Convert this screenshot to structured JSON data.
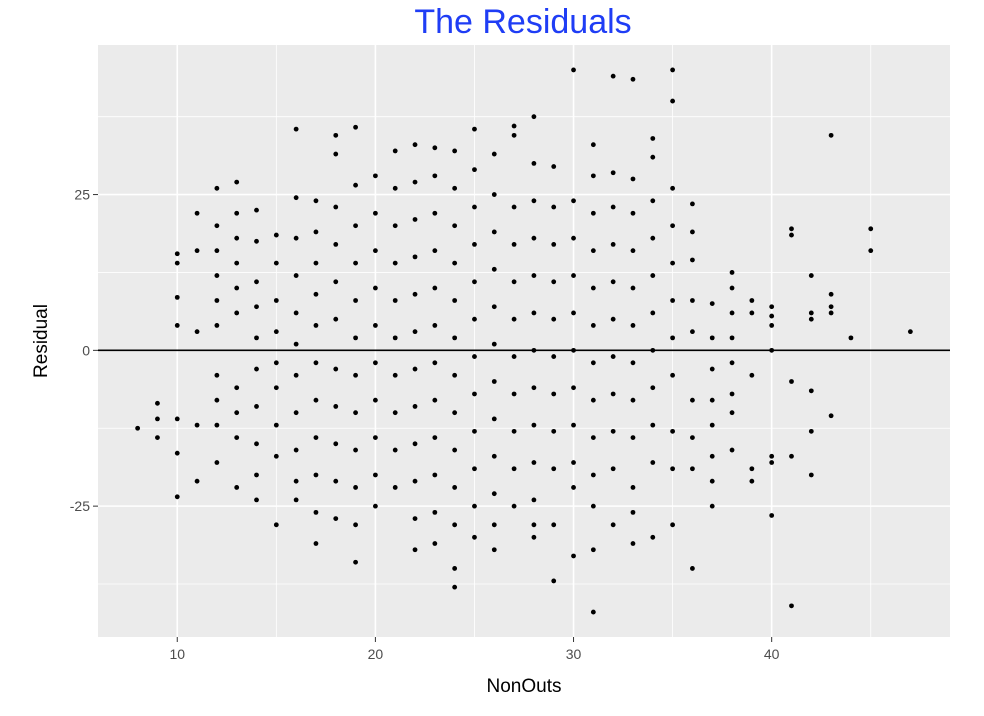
{
  "chart_data": {
    "type": "scatter",
    "title": "The Residuals",
    "xlabel": "NonOuts",
    "ylabel": "Residual",
    "xlim": [
      6,
      49
    ],
    "ylim": [
      -46,
      49
    ],
    "x_ticks": [
      10,
      20,
      30,
      40
    ],
    "x_tick_labels": [
      "10",
      "20",
      "30",
      "40"
    ],
    "y_ticks": [
      -25,
      0,
      25
    ],
    "y_tick_labels": [
      "-25",
      "0",
      "25"
    ],
    "grid": true,
    "reference_line": {
      "y": 0
    },
    "colors": {
      "title": "#1f3df5",
      "panel": "#ebebeb",
      "grid": "#ffffff",
      "points": "#000000",
      "reference_line": "#000000"
    },
    "points": [
      [
        8,
        -12.5
      ],
      [
        9,
        -8.5
      ],
      [
        9,
        -11
      ],
      [
        9,
        -14
      ],
      [
        10,
        15.5
      ],
      [
        10,
        14
      ],
      [
        10,
        8.5
      ],
      [
        10,
        4
      ],
      [
        10,
        -11
      ],
      [
        10,
        -16.5
      ],
      [
        10,
        -23.5
      ],
      [
        11,
        22
      ],
      [
        11,
        16
      ],
      [
        11,
        3
      ],
      [
        11,
        -21
      ],
      [
        11,
        -12
      ],
      [
        12,
        26
      ],
      [
        12,
        20
      ],
      [
        12,
        16
      ],
      [
        12,
        12
      ],
      [
        12,
        8
      ],
      [
        12,
        4
      ],
      [
        12,
        -4
      ],
      [
        12,
        -8
      ],
      [
        12,
        -12
      ],
      [
        12,
        -18
      ],
      [
        13,
        27
      ],
      [
        13,
        22
      ],
      [
        13,
        18
      ],
      [
        13,
        14
      ],
      [
        13,
        10
      ],
      [
        13,
        6
      ],
      [
        13,
        -6
      ],
      [
        13,
        -10
      ],
      [
        13,
        -14
      ],
      [
        13,
        -22
      ],
      [
        14,
        22.5
      ],
      [
        14,
        17.5
      ],
      [
        14,
        11
      ],
      [
        14,
        7
      ],
      [
        14,
        2
      ],
      [
        14,
        -3
      ],
      [
        14,
        -9
      ],
      [
        14,
        -15
      ],
      [
        14,
        -20
      ],
      [
        14,
        -24
      ],
      [
        15,
        18.5
      ],
      [
        15,
        14
      ],
      [
        15,
        8
      ],
      [
        15,
        3
      ],
      [
        15,
        -2
      ],
      [
        15,
        -6
      ],
      [
        15,
        -12
      ],
      [
        15,
        -17
      ],
      [
        15,
        -28
      ],
      [
        16,
        35.5
      ],
      [
        16,
        24.5
      ],
      [
        16,
        18
      ],
      [
        16,
        12
      ],
      [
        16,
        6
      ],
      [
        16,
        1
      ],
      [
        16,
        -4
      ],
      [
        16,
        -10
      ],
      [
        16,
        -16
      ],
      [
        16,
        -21
      ],
      [
        16,
        -24
      ],
      [
        17,
        24
      ],
      [
        17,
        19
      ],
      [
        17,
        14
      ],
      [
        17,
        9
      ],
      [
        17,
        4
      ],
      [
        17,
        -2
      ],
      [
        17,
        -8
      ],
      [
        17,
        -14
      ],
      [
        17,
        -20
      ],
      [
        17,
        -26
      ],
      [
        17,
        -31
      ],
      [
        18,
        34.5
      ],
      [
        18,
        31.5
      ],
      [
        18,
        23
      ],
      [
        18,
        17
      ],
      [
        18,
        11
      ],
      [
        18,
        5
      ],
      [
        18,
        -3
      ],
      [
        18,
        -9
      ],
      [
        18,
        -15
      ],
      [
        18,
        -21
      ],
      [
        18,
        -27
      ],
      [
        19,
        35.8
      ],
      [
        19,
        26.5
      ],
      [
        19,
        20
      ],
      [
        19,
        14
      ],
      [
        19,
        8
      ],
      [
        19,
        2
      ],
      [
        19,
        -4
      ],
      [
        19,
        -10
      ],
      [
        19,
        -16
      ],
      [
        19,
        -22
      ],
      [
        19,
        -28
      ],
      [
        19,
        -34
      ],
      [
        20,
        28
      ],
      [
        20,
        22
      ],
      [
        20,
        16
      ],
      [
        20,
        10
      ],
      [
        20,
        4
      ],
      [
        20,
        -2
      ],
      [
        20,
        -8
      ],
      [
        20,
        -14
      ],
      [
        20,
        -20
      ],
      [
        20,
        -25
      ],
      [
        21,
        32
      ],
      [
        21,
        26
      ],
      [
        21,
        20
      ],
      [
        21,
        14
      ],
      [
        21,
        8
      ],
      [
        21,
        2
      ],
      [
        21,
        -4
      ],
      [
        21,
        -10
      ],
      [
        21,
        -16
      ],
      [
        21,
        -22
      ],
      [
        22,
        33
      ],
      [
        22,
        27
      ],
      [
        22,
        21
      ],
      [
        22,
        15
      ],
      [
        22,
        9
      ],
      [
        22,
        3
      ],
      [
        22,
        -3
      ],
      [
        22,
        -9
      ],
      [
        22,
        -15
      ],
      [
        22,
        -21
      ],
      [
        22,
        -27
      ],
      [
        22,
        -32
      ],
      [
        23,
        32.5
      ],
      [
        23,
        28
      ],
      [
        23,
        22
      ],
      [
        23,
        16
      ],
      [
        23,
        10
      ],
      [
        23,
        4
      ],
      [
        23,
        -2
      ],
      [
        23,
        -8
      ],
      [
        23,
        -14
      ],
      [
        23,
        -20
      ],
      [
        23,
        -26
      ],
      [
        23,
        -31
      ],
      [
        24,
        32
      ],
      [
        24,
        26
      ],
      [
        24,
        20
      ],
      [
        24,
        14
      ],
      [
        24,
        8
      ],
      [
        24,
        2
      ],
      [
        24,
        -4
      ],
      [
        24,
        -10
      ],
      [
        24,
        -16
      ],
      [
        24,
        -22
      ],
      [
        24,
        -28
      ],
      [
        24,
        -35
      ],
      [
        24,
        -38
      ],
      [
        25,
        35.5
      ],
      [
        25,
        29
      ],
      [
        25,
        23
      ],
      [
        25,
        17
      ],
      [
        25,
        11
      ],
      [
        25,
        5
      ],
      [
        25,
        -1
      ],
      [
        25,
        -7
      ],
      [
        25,
        -13
      ],
      [
        25,
        -19
      ],
      [
        25,
        -25
      ],
      [
        25,
        -30
      ],
      [
        26,
        31.5
      ],
      [
        26,
        25
      ],
      [
        26,
        19
      ],
      [
        26,
        13
      ],
      [
        26,
        7
      ],
      [
        26,
        1
      ],
      [
        26,
        -5
      ],
      [
        26,
        -11
      ],
      [
        26,
        -17
      ],
      [
        26,
        -23
      ],
      [
        26,
        -28
      ],
      [
        26,
        -32
      ],
      [
        27,
        36
      ],
      [
        27,
        34.5
      ],
      [
        27,
        23
      ],
      [
        27,
        17
      ],
      [
        27,
        11
      ],
      [
        27,
        5
      ],
      [
        27,
        -1
      ],
      [
        27,
        -7
      ],
      [
        27,
        -13
      ],
      [
        27,
        -19
      ],
      [
        27,
        -25
      ],
      [
        28,
        37.5
      ],
      [
        28,
        30
      ],
      [
        28,
        24
      ],
      [
        28,
        18
      ],
      [
        28,
        12
      ],
      [
        28,
        6
      ],
      [
        28,
        0
      ],
      [
        28,
        -6
      ],
      [
        28,
        -12
      ],
      [
        28,
        -18
      ],
      [
        28,
        -24
      ],
      [
        28,
        -28
      ],
      [
        28,
        -30
      ],
      [
        29,
        29.5
      ],
      [
        29,
        23
      ],
      [
        29,
        17
      ],
      [
        29,
        11
      ],
      [
        29,
        5
      ],
      [
        29,
        -1
      ],
      [
        29,
        -7
      ],
      [
        29,
        -13
      ],
      [
        29,
        -19
      ],
      [
        29,
        -28
      ],
      [
        29,
        -37
      ],
      [
        30,
        45
      ],
      [
        30,
        24
      ],
      [
        30,
        18
      ],
      [
        30,
        12
      ],
      [
        30,
        6
      ],
      [
        30,
        0
      ],
      [
        30,
        -6
      ],
      [
        30,
        -12
      ],
      [
        30,
        -18
      ],
      [
        30,
        -22
      ],
      [
        30,
        -33
      ],
      [
        31,
        33
      ],
      [
        31,
        28
      ],
      [
        31,
        22
      ],
      [
        31,
        16
      ],
      [
        31,
        10
      ],
      [
        31,
        4
      ],
      [
        31,
        -2
      ],
      [
        31,
        -8
      ],
      [
        31,
        -14
      ],
      [
        31,
        -20
      ],
      [
        31,
        -25
      ],
      [
        31,
        -32
      ],
      [
        31,
        -42
      ],
      [
        32,
        44
      ],
      [
        32,
        28.5
      ],
      [
        32,
        23
      ],
      [
        32,
        17
      ],
      [
        32,
        11
      ],
      [
        32,
        5
      ],
      [
        32,
        -1
      ],
      [
        32,
        -7
      ],
      [
        32,
        -13
      ],
      [
        32,
        -19
      ],
      [
        32,
        -28
      ],
      [
        33,
        43.5
      ],
      [
        33,
        27.5
      ],
      [
        33,
        22
      ],
      [
        33,
        16
      ],
      [
        33,
        10
      ],
      [
        33,
        4
      ],
      [
        33,
        -2
      ],
      [
        33,
        -8
      ],
      [
        33,
        -14
      ],
      [
        33,
        -22
      ],
      [
        33,
        -26
      ],
      [
        33,
        -31
      ],
      [
        34,
        34
      ],
      [
        34,
        31
      ],
      [
        34,
        24
      ],
      [
        34,
        18
      ],
      [
        34,
        12
      ],
      [
        34,
        6
      ],
      [
        34,
        0
      ],
      [
        34,
        -6
      ],
      [
        34,
        -12
      ],
      [
        34,
        -18
      ],
      [
        34,
        -30
      ],
      [
        35,
        45
      ],
      [
        35,
        40
      ],
      [
        35,
        26
      ],
      [
        35,
        20
      ],
      [
        35,
        14
      ],
      [
        35,
        8
      ],
      [
        35,
        2
      ],
      [
        35,
        -4
      ],
      [
        35,
        -13
      ],
      [
        35,
        -19
      ],
      [
        35,
        -28
      ],
      [
        36,
        23.5
      ],
      [
        36,
        19
      ],
      [
        36,
        14.5
      ],
      [
        36,
        8
      ],
      [
        36,
        3
      ],
      [
        36,
        -8
      ],
      [
        36,
        -14
      ],
      [
        36,
        -19
      ],
      [
        36,
        -35
      ],
      [
        37,
        7.5
      ],
      [
        37,
        2
      ],
      [
        37,
        -3
      ],
      [
        37,
        -8
      ],
      [
        37,
        -12
      ],
      [
        37,
        -17
      ],
      [
        37,
        -21
      ],
      [
        37,
        -25
      ],
      [
        38,
        12.5
      ],
      [
        38,
        10
      ],
      [
        38,
        6
      ],
      [
        38,
        2
      ],
      [
        38,
        -2
      ],
      [
        38,
        -7
      ],
      [
        38,
        -10
      ],
      [
        38,
        -16
      ],
      [
        39,
        8
      ],
      [
        39,
        6
      ],
      [
        39,
        -4
      ],
      [
        39,
        -19
      ],
      [
        39,
        -21
      ],
      [
        40,
        7
      ],
      [
        40,
        5.5
      ],
      [
        40,
        4
      ],
      [
        40,
        0
      ],
      [
        40,
        -17
      ],
      [
        40,
        -18
      ],
      [
        40,
        -26.5
      ],
      [
        41,
        19.5
      ],
      [
        41,
        18.5
      ],
      [
        41,
        -5
      ],
      [
        41,
        -17
      ],
      [
        41,
        -41
      ],
      [
        42,
        12
      ],
      [
        42,
        6
      ],
      [
        42,
        5
      ],
      [
        42,
        -6.5
      ],
      [
        42,
        -13
      ],
      [
        42,
        -20
      ],
      [
        43,
        34.5
      ],
      [
        43,
        9
      ],
      [
        43,
        7
      ],
      [
        43,
        6
      ],
      [
        43,
        -10.5
      ],
      [
        44,
        2
      ],
      [
        45,
        19.5
      ],
      [
        45,
        16
      ],
      [
        47,
        3
      ]
    ]
  }
}
